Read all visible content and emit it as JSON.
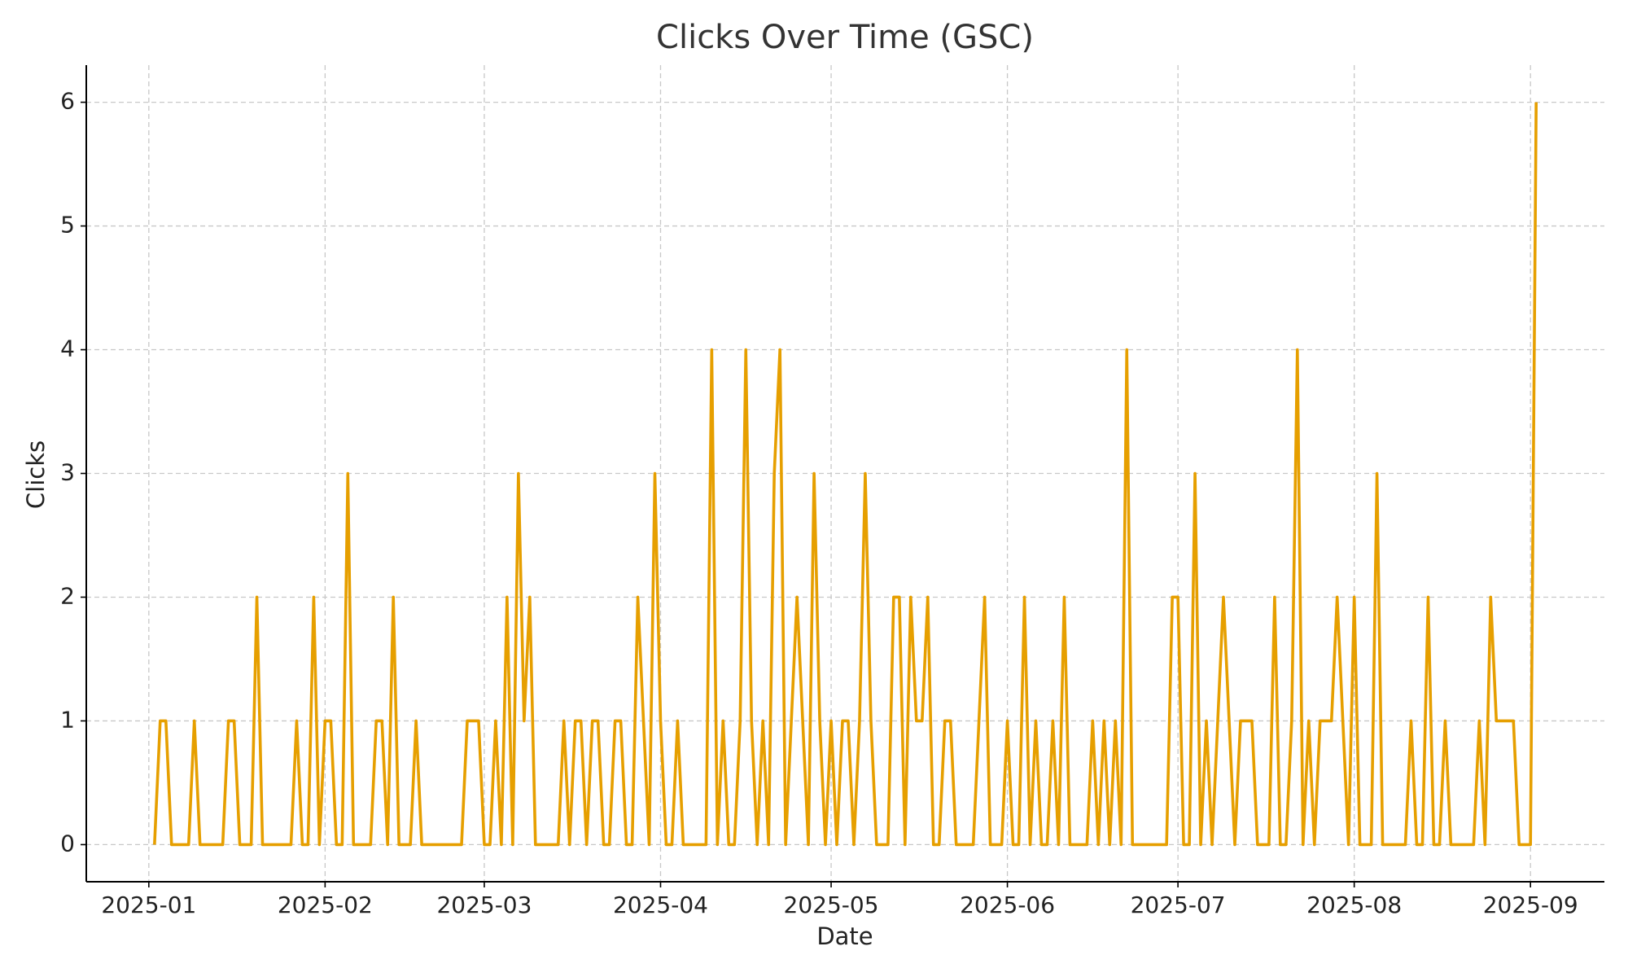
{
  "chart_data": {
    "type": "line",
    "title": "Clicks Over Time (GSC)",
    "x_label": "Date",
    "y_label": "Clicks",
    "color": "#e69f00",
    "grid": true,
    "x": [
      "2025-01-02",
      "2025-01-03",
      "2025-01-04",
      "2025-01-05",
      "2025-01-06",
      "2025-01-07",
      "2025-01-08",
      "2025-01-09",
      "2025-01-10",
      "2025-01-11",
      "2025-01-12",
      "2025-01-13",
      "2025-01-14",
      "2025-01-15",
      "2025-01-16",
      "2025-01-17",
      "2025-01-18",
      "2025-01-19",
      "2025-01-20",
      "2025-01-21",
      "2025-01-22",
      "2025-01-23",
      "2025-01-24",
      "2025-01-25",
      "2025-01-26",
      "2025-01-27",
      "2025-01-28",
      "2025-01-29",
      "2025-01-30",
      "2025-01-31",
      "2025-02-01",
      "2025-02-02",
      "2025-02-03",
      "2025-02-04",
      "2025-02-05",
      "2025-02-06",
      "2025-02-07",
      "2025-02-08",
      "2025-02-09",
      "2025-02-10",
      "2025-02-11",
      "2025-02-12",
      "2025-02-13",
      "2025-02-14",
      "2025-02-15",
      "2025-02-16",
      "2025-02-17",
      "2025-02-18",
      "2025-02-19",
      "2025-02-20",
      "2025-02-21",
      "2025-02-22",
      "2025-02-23",
      "2025-02-24",
      "2025-02-25",
      "2025-02-26",
      "2025-02-27",
      "2025-02-28",
      "2025-03-01",
      "2025-03-02",
      "2025-03-03",
      "2025-03-04",
      "2025-03-05",
      "2025-03-06",
      "2025-03-07",
      "2025-03-08",
      "2025-03-09",
      "2025-03-10",
      "2025-03-11",
      "2025-03-12",
      "2025-03-13",
      "2025-03-14",
      "2025-03-15",
      "2025-03-16",
      "2025-03-17",
      "2025-03-18",
      "2025-03-19",
      "2025-03-20",
      "2025-03-21",
      "2025-03-22",
      "2025-03-23",
      "2025-03-24",
      "2025-03-25",
      "2025-03-26",
      "2025-03-27",
      "2025-03-28",
      "2025-03-29",
      "2025-03-30",
      "2025-03-31",
      "2025-04-01",
      "2025-04-02",
      "2025-04-03",
      "2025-04-04",
      "2025-04-05",
      "2025-04-06",
      "2025-04-07",
      "2025-04-08",
      "2025-04-09",
      "2025-04-10",
      "2025-04-11",
      "2025-04-12",
      "2025-04-13",
      "2025-04-14",
      "2025-04-15",
      "2025-04-16",
      "2025-04-17",
      "2025-04-18",
      "2025-04-19",
      "2025-04-20",
      "2025-04-21",
      "2025-04-22",
      "2025-04-23",
      "2025-04-24",
      "2025-04-25",
      "2025-04-26",
      "2025-04-27",
      "2025-04-28",
      "2025-04-29",
      "2025-04-30",
      "2025-05-01",
      "2025-05-02",
      "2025-05-03",
      "2025-05-04",
      "2025-05-05",
      "2025-05-06",
      "2025-05-07",
      "2025-05-08",
      "2025-05-09",
      "2025-05-10",
      "2025-05-11",
      "2025-05-12",
      "2025-05-13",
      "2025-05-14",
      "2025-05-15",
      "2025-05-16",
      "2025-05-17",
      "2025-05-18",
      "2025-05-19",
      "2025-05-20",
      "2025-05-21",
      "2025-05-22",
      "2025-05-23",
      "2025-05-24",
      "2025-05-25",
      "2025-05-26",
      "2025-05-27",
      "2025-05-28",
      "2025-05-29",
      "2025-05-30",
      "2025-05-31",
      "2025-06-01",
      "2025-06-02",
      "2025-06-03",
      "2025-06-04",
      "2025-06-05",
      "2025-06-06",
      "2025-06-07",
      "2025-06-08",
      "2025-06-09",
      "2025-06-10",
      "2025-06-11",
      "2025-06-12",
      "2025-06-13",
      "2025-06-14",
      "2025-06-15",
      "2025-06-16",
      "2025-06-17",
      "2025-06-18",
      "2025-06-19",
      "2025-06-20",
      "2025-06-21",
      "2025-06-22",
      "2025-06-23",
      "2025-06-24",
      "2025-06-25",
      "2025-06-26",
      "2025-06-27",
      "2025-06-28",
      "2025-06-29",
      "2025-06-30",
      "2025-07-01",
      "2025-07-02",
      "2025-07-03",
      "2025-07-04",
      "2025-07-05",
      "2025-07-06",
      "2025-07-07",
      "2025-07-08",
      "2025-07-09",
      "2025-07-10",
      "2025-07-11",
      "2025-07-12",
      "2025-07-13",
      "2025-07-14",
      "2025-07-15",
      "2025-07-16",
      "2025-07-17",
      "2025-07-18",
      "2025-07-19",
      "2025-07-20",
      "2025-07-21",
      "2025-07-22",
      "2025-07-23",
      "2025-07-24",
      "2025-07-25",
      "2025-07-26",
      "2025-07-27",
      "2025-07-28",
      "2025-07-29",
      "2025-07-30",
      "2025-07-31",
      "2025-08-01",
      "2025-08-02",
      "2025-08-03",
      "2025-08-04",
      "2025-08-05",
      "2025-08-06",
      "2025-08-07",
      "2025-08-08",
      "2025-08-09",
      "2025-08-10",
      "2025-08-11",
      "2025-08-12",
      "2025-08-13",
      "2025-08-14",
      "2025-08-15",
      "2025-08-16",
      "2025-08-17",
      "2025-08-18",
      "2025-08-19",
      "2025-08-20",
      "2025-08-21",
      "2025-08-22",
      "2025-08-23",
      "2025-08-24",
      "2025-08-25",
      "2025-08-26",
      "2025-08-27",
      "2025-08-28",
      "2025-08-29",
      "2025-08-30",
      "2025-08-31",
      "2025-09-01",
      "2025-09-02"
    ],
    "values": [
      0,
      1,
      1,
      0,
      0,
      0,
      0,
      1,
      0,
      0,
      0,
      0,
      0,
      1,
      1,
      0,
      0,
      0,
      2,
      0,
      0,
      0,
      0,
      0,
      0,
      1,
      0,
      0,
      2,
      0,
      1,
      1,
      0,
      0,
      3,
      0,
      0,
      0,
      0,
      1,
      1,
      0,
      2,
      0,
      0,
      0,
      1,
      0,
      0,
      0,
      0,
      0,
      0,
      0,
      0,
      1,
      1,
      1,
      0,
      0,
      1,
      0,
      2,
      0,
      3,
      1,
      2,
      0,
      0,
      0,
      0,
      0,
      1,
      0,
      1,
      1,
      0,
      1,
      1,
      0,
      0,
      1,
      1,
      0,
      0,
      2,
      1,
      0,
      3,
      1,
      0,
      0,
      1,
      0,
      0,
      0,
      0,
      0,
      4,
      0,
      1,
      0,
      0,
      1,
      4,
      1,
      0,
      1,
      0,
      3,
      4,
      0,
      1,
      2,
      1,
      0,
      3,
      1,
      0,
      1,
      0,
      1,
      1,
      0,
      1,
      3,
      1,
      0,
      0,
      0,
      2,
      2,
      0,
      2,
      1,
      1,
      2,
      0,
      0,
      1,
      1,
      0,
      0,
      0,
      0,
      1,
      2,
      0,
      0,
      0,
      1,
      0,
      0,
      2,
      0,
      1,
      0,
      0,
      1,
      0,
      2,
      0,
      0,
      0,
      0,
      1,
      0,
      1,
      0,
      1,
      0,
      4,
      0,
      0,
      0,
      0,
      0,
      0,
      0,
      2,
      2,
      0,
      0,
      3,
      0,
      1,
      0,
      1,
      2,
      1,
      0,
      1,
      1,
      1,
      0,
      0,
      0,
      2,
      0,
      0,
      1,
      4,
      0,
      1,
      0,
      1,
      1,
      1,
      2,
      1,
      0,
      2,
      0,
      0,
      0,
      3,
      0,
      0,
      0,
      0,
      0,
      1,
      0,
      0,
      2,
      0,
      0,
      1,
      0,
      0,
      0,
      0,
      0,
      1,
      0,
      2,
      1,
      1,
      1,
      1,
      0,
      0,
      0,
      6
    ],
    "xlim": [
      "2024-12-21",
      "2025-09-14"
    ],
    "xticks": [
      {
        "value": "2025-01-01",
        "label": "2025-01"
      },
      {
        "value": "2025-02-01",
        "label": "2025-02"
      },
      {
        "value": "2025-03-01",
        "label": "2025-03"
      },
      {
        "value": "2025-04-01",
        "label": "2025-04"
      },
      {
        "value": "2025-05-01",
        "label": "2025-05"
      },
      {
        "value": "2025-06-01",
        "label": "2025-06"
      },
      {
        "value": "2025-07-01",
        "label": "2025-07"
      },
      {
        "value": "2025-08-01",
        "label": "2025-08"
      },
      {
        "value": "2025-09-01",
        "label": "2025-09"
      }
    ],
    "ylim": [
      -0.3,
      6.3
    ],
    "yticks": [
      0,
      1,
      2,
      3,
      4,
      5,
      6
    ]
  }
}
